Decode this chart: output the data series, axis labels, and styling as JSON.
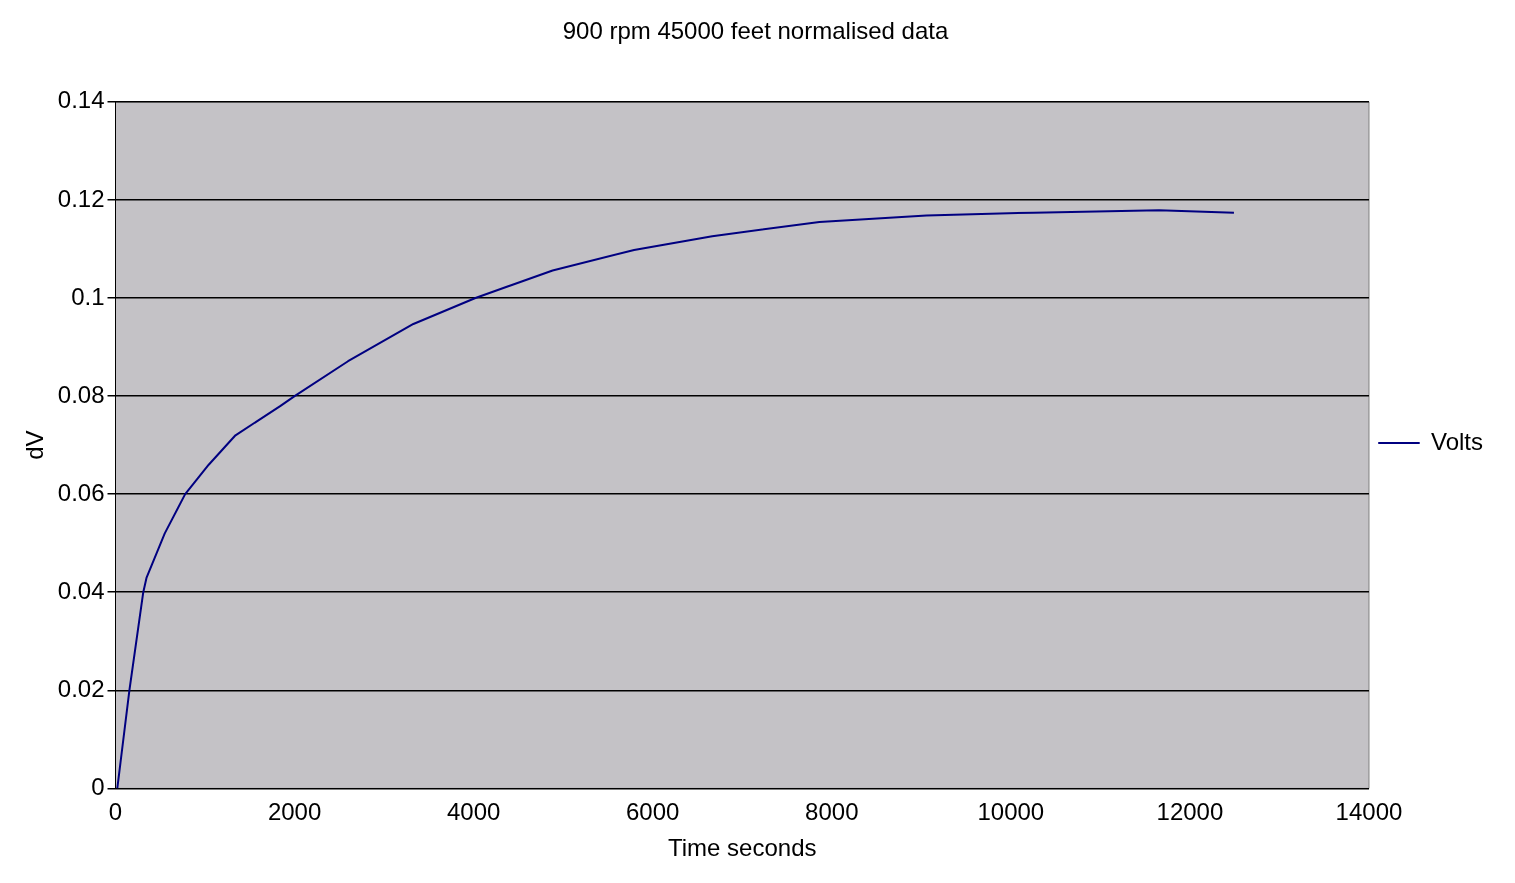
{
  "chart_data": {
    "type": "line",
    "title": "900 rpm 45000 feet normalised data",
    "xlabel": "Time seconds",
    "ylabel": "dV",
    "series": [
      {
        "name": "Volts",
        "color": "#000080",
        "x": [
          20,
          155,
          310,
          347,
          550,
          778,
          1041,
          1340,
          1843,
          2000,
          2597,
          3327,
          4020,
          4882,
          5792,
          6665,
          7862,
          9058,
          10255,
          11655,
          12492
        ],
        "values": [
          0,
          0.02,
          0.04,
          0.043,
          0.052,
          0.06,
          0.066,
          0.072,
          0.078,
          0.08,
          0.0871,
          0.0947,
          0.1,
          0.1056,
          0.1098,
          0.1126,
          0.1155,
          0.1168,
          0.1174,
          0.1179,
          0.1174
        ]
      }
    ],
    "xlim": [
      0,
      14000
    ],
    "xticks": [
      0,
      2000,
      4000,
      6000,
      8000,
      10000,
      12000,
      14000
    ],
    "ylim": [
      0,
      0.14
    ],
    "yticks": [
      0,
      0.02,
      0.04,
      0.06,
      0.08,
      0.1,
      0.12,
      0.14
    ],
    "grid": "y",
    "legend": "right",
    "marker": "none",
    "line_style": "solid"
  }
}
